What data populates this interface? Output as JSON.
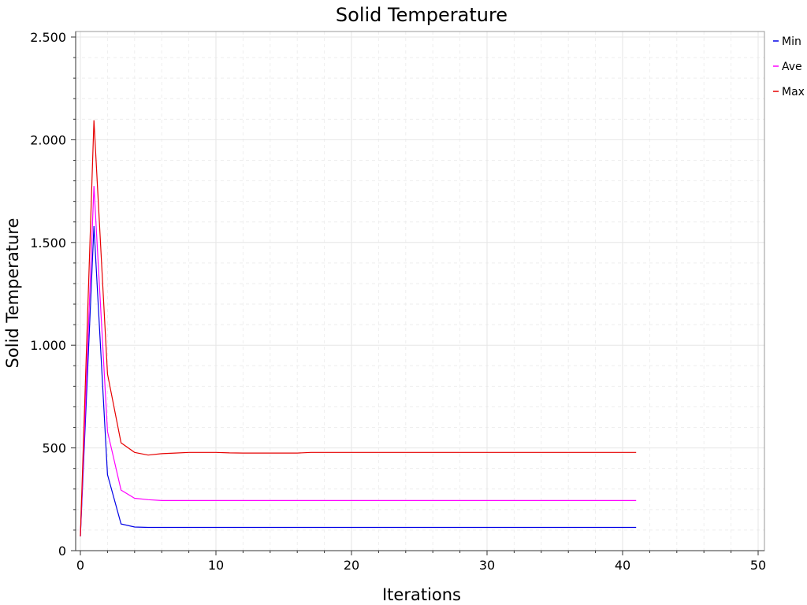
{
  "chart_data": {
    "type": "line",
    "title": "Solid Temperature",
    "xlabel": "Iterations",
    "ylabel": "Solid Temperature",
    "xlim": [
      0,
      50
    ],
    "ylim": [
      0,
      2500
    ],
    "x_ticks": [
      0,
      10,
      20,
      30,
      40,
      50
    ],
    "x_tick_labels": [
      "0",
      "10",
      "20",
      "30",
      "40",
      "50"
    ],
    "y_ticks": [
      0,
      500,
      1000,
      1500,
      2000,
      2500
    ],
    "y_tick_labels": [
      "0",
      "500",
      "1.000",
      "1.500",
      "2.000",
      "2.500"
    ],
    "grid": true,
    "legend_position": "top-right",
    "x": [
      0,
      1,
      2,
      3,
      4,
      5,
      6,
      7,
      8,
      9,
      10,
      11,
      12,
      13,
      14,
      15,
      16,
      17,
      18,
      19,
      20,
      21,
      22,
      23,
      24,
      25,
      26,
      27,
      28,
      29,
      30,
      31,
      32,
      33,
      34,
      35,
      36,
      37,
      38,
      39,
      40,
      41
    ],
    "series": [
      {
        "name": "Min",
        "color": "#0000e6",
        "values": [
          70,
          1580,
          370,
          130,
          115,
          113,
          113,
          113,
          113,
          113,
          113,
          113,
          113,
          113,
          113,
          113,
          113,
          113,
          113,
          113,
          113,
          113,
          113,
          113,
          113,
          113,
          113,
          113,
          113,
          113,
          113,
          113,
          113,
          113,
          113,
          113,
          113,
          113,
          113,
          113,
          113,
          113
        ]
      },
      {
        "name": "Ave",
        "color": "#ff00ff",
        "values": [
          70,
          1775,
          580,
          295,
          255,
          248,
          244,
          244,
          244,
          244,
          244,
          244,
          244,
          244,
          244,
          244,
          244,
          244,
          244,
          244,
          244,
          244,
          244,
          244,
          244,
          244,
          244,
          244,
          244,
          244,
          244,
          244,
          244,
          244,
          244,
          244,
          244,
          244,
          244,
          244,
          244,
          244
        ]
      },
      {
        "name": "Max",
        "color": "#e60000",
        "values": [
          70,
          2095,
          860,
          525,
          478,
          465,
          472,
          475,
          478,
          478,
          478,
          476,
          475,
          475,
          475,
          475,
          475,
          478,
          478,
          478,
          478,
          478,
          478,
          478,
          478,
          478,
          478,
          478,
          478,
          478,
          478,
          478,
          478,
          478,
          478,
          478,
          478,
          478,
          478,
          478,
          478,
          478
        ]
      }
    ]
  }
}
